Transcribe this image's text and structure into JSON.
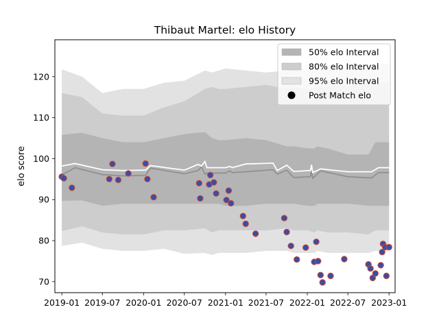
{
  "chart_data": {
    "type": "area",
    "title": "Thibaut Martel: elo History",
    "xlabel": "",
    "ylabel": "elo score",
    "xlim": [
      "2018-12-01",
      "2023-01-28"
    ],
    "ylim": [
      67.3,
      129
    ],
    "x_ticks": [
      "2019-01",
      "2019-07",
      "2020-01",
      "2020-07",
      "2021-01",
      "2021-07",
      "2022-01",
      "2022-07",
      "2023-01"
    ],
    "y_ticks": [
      70,
      80,
      90,
      100,
      110,
      120
    ],
    "grid": false,
    "legend_position": "top-right",
    "colors": {
      "band_50": "#b4b4b4",
      "band_80": "#cdcdcd",
      "band_95": "#e2e2e2",
      "mean_line": "#8c8c8c",
      "median_line": "#ffffff",
      "point_fill": "#3b4da3",
      "point_edge": "#d24a3a"
    },
    "legend": [
      {
        "label": "50% elo Interval",
        "kind": "band_50"
      },
      {
        "label": "80% elo Interval",
        "kind": "band_80"
      },
      {
        "label": "95% elo Interval",
        "kind": "band_95"
      },
      {
        "label": "Post Match elo",
        "kind": "point"
      }
    ],
    "bands": {
      "x": [
        "2019-01-01",
        "2019-04-01",
        "2019-07-01",
        "2019-10-01",
        "2020-01-01",
        "2020-04-01",
        "2020-07-01",
        "2020-10-01",
        "2020-11-01",
        "2020-12-01",
        "2021-01-01",
        "2021-04-01",
        "2021-07-01",
        "2021-10-01",
        "2021-11-01",
        "2022-01-01",
        "2022-02-01",
        "2022-02-15",
        "2022-04-01",
        "2022-07-01",
        "2022-10-01",
        "2022-11-01",
        "2023-01-01"
      ],
      "p95_upper": [
        121.8,
        120,
        116,
        117,
        117,
        118.5,
        119,
        121.5,
        121,
        121.5,
        122,
        121.5,
        121,
        121.5,
        122,
        122,
        121.5,
        122,
        122,
        122,
        122,
        123,
        123
      ],
      "p80_upper": [
        116,
        115,
        111,
        110.5,
        110.5,
        112.5,
        114,
        117,
        117.5,
        117,
        117,
        117.5,
        118,
        117,
        117.5,
        117,
        117,
        117.5,
        117.5,
        118,
        118,
        118.5,
        118.5
      ],
      "p50_upper": [
        105.8,
        106.3,
        105,
        104,
        104,
        105,
        106,
        106.5,
        105,
        104.5,
        104.5,
        105,
        104.5,
        103,
        103,
        102.5,
        102.5,
        103,
        102.5,
        101,
        101,
        104,
        104
      ],
      "p50_lower": [
        89.7,
        89.8,
        88.5,
        89,
        89,
        89,
        89,
        89,
        89,
        89,
        88.5,
        88.5,
        89,
        89,
        89,
        88.5,
        88.5,
        89,
        89,
        89,
        88.5,
        88.5,
        88.5
      ],
      "p80_lower": [
        82.3,
        83.5,
        82,
        81.5,
        81.5,
        82.5,
        82.5,
        83,
        82,
        82.5,
        82.5,
        82.5,
        82.5,
        83,
        82.5,
        82.5,
        82,
        82.5,
        82,
        82,
        81.5,
        82.5,
        82.5
      ],
      "p95_lower": [
        78.7,
        79.5,
        78,
        77.5,
        77.5,
        78,
        76.8,
        77,
        76.5,
        77,
        77,
        77,
        77.5,
        77.5,
        77,
        77,
        77,
        77.5,
        77,
        77,
        77,
        77.5,
        77.5
      ]
    },
    "lines": {
      "x": [
        "2019-01-01",
        "2019-03-01",
        "2019-07-01",
        "2019-10-01",
        "2020-01-10",
        "2020-02-01",
        "2020-07-01",
        "2020-09-01",
        "2020-09-15",
        "2020-10-01",
        "2020-10-10",
        "2021-01-01",
        "2021-01-20",
        "2021-02-01",
        "2021-04-01",
        "2021-08-01",
        "2021-08-20",
        "2021-10-01",
        "2021-11-01",
        "2021-12-15",
        "2022-01-15",
        "2022-01-20",
        "2022-01-25",
        "2022-03-01",
        "2022-07-01",
        "2022-10-15",
        "2022-11-15",
        "2023-01-01"
      ],
      "median": [
        98.2,
        98.8,
        97.3,
        97.1,
        97.2,
        98.3,
        97.2,
        98.6,
        98.2,
        99.3,
        97.8,
        97.8,
        98.1,
        97.8,
        98.7,
        98.9,
        97.1,
        98.4,
        96.9,
        97.0,
        97.1,
        98.5,
        96.6,
        97.5,
        96.8,
        96.8,
        97.8,
        97.8
      ],
      "mean": [
        96.0,
        97.8,
        96.1,
        95.8,
        95.9,
        97.7,
        96.3,
        97.1,
        98.0,
        96.2,
        96.5,
        96.5,
        97.0,
        96.6,
        96.8,
        97.3,
        96.2,
        97.2,
        95.4,
        95.5,
        95.6,
        97.1,
        95.2,
        97.0,
        95.6,
        95.3,
        96.6,
        96.6
      ]
    },
    "series": [
      {
        "name": "Post Match elo",
        "x": [
          "2019-01-01",
          "2019-01-10",
          "2019-02-15",
          "2019-08-01",
          "2019-08-15",
          "2019-09-10",
          "2019-10-25",
          "2020-01-10",
          "2020-01-18",
          "2020-02-15",
          "2020-09-05",
          "2020-09-10",
          "2020-10-20",
          "2020-10-25",
          "2020-11-10",
          "2020-11-20",
          "2021-01-05",
          "2021-01-15",
          "2021-01-25",
          "2021-03-20",
          "2021-04-01",
          "2021-05-15",
          "2021-09-20",
          "2021-10-01",
          "2021-10-20",
          "2021-11-15",
          "2021-12-25",
          "2022-02-01",
          "2022-02-10",
          "2022-02-18",
          "2022-03-01",
          "2022-03-10",
          "2022-04-15",
          "2022-06-15",
          "2022-10-01",
          "2022-10-10",
          "2022-10-20",
          "2022-11-01",
          "2022-11-25",
          "2022-12-01",
          "2022-12-05",
          "2022-12-15",
          "2022-12-20",
          "2023-01-01"
        ],
        "y": [
          95.6,
          95.2,
          92.9,
          95.0,
          98.7,
          94.8,
          96.4,
          98.8,
          95.0,
          90.6,
          94.0,
          90.3,
          93.7,
          96.0,
          94.2,
          91.5,
          89.9,
          92.2,
          89.1,
          86.0,
          84.1,
          81.7,
          85.5,
          82.1,
          78.7,
          75.4,
          78.3,
          74.8,
          79.7,
          75.0,
          71.6,
          69.8,
          71.4,
          75.5,
          74.2,
          73.2,
          70.9,
          72.0,
          74.0,
          77.2,
          79.2,
          78.4,
          71.4,
          78.4
        ]
      }
    ]
  }
}
